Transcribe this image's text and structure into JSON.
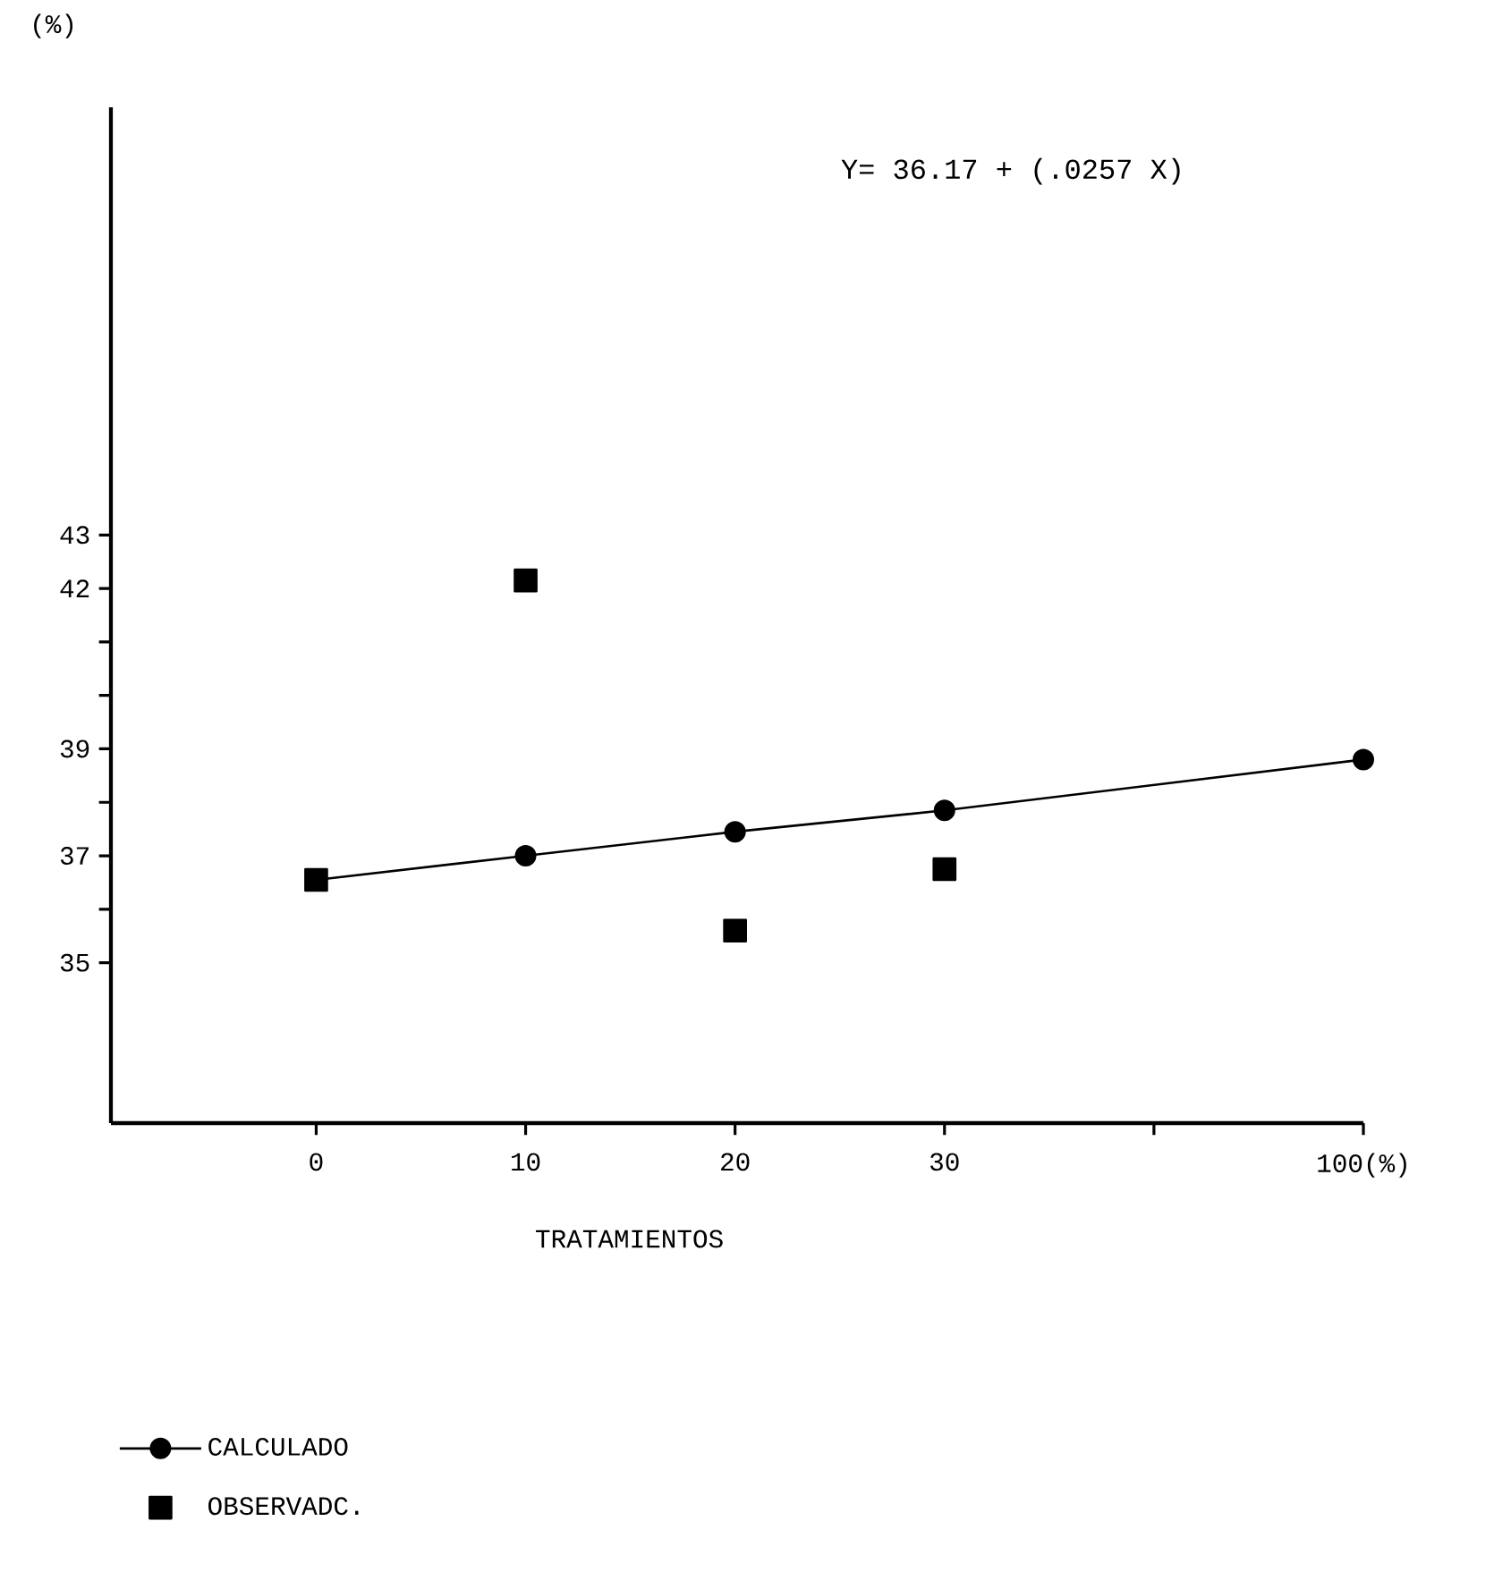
{
  "chart_data": {
    "type": "line",
    "ylabel": "(%)",
    "xlabel": "TRATAMIENTOS",
    "annotations": [
      "Y= 36.17 + (.0257 X)"
    ],
    "categories": [
      "0",
      "10",
      "20",
      "30",
      null,
      "100(%)"
    ],
    "series": [
      {
        "name": "CALCULADO",
        "marker": "circle",
        "line_style": "solid",
        "color": "#000000",
        "values": [
          36.55,
          37.0,
          37.45,
          37.85,
          null,
          38.8
        ]
      },
      {
        "name": "OBSERVADC.",
        "type": "scatter",
        "marker": "square",
        "color": "#000000",
        "values": [
          36.55,
          42.15,
          35.6,
          36.75,
          null,
          null
        ]
      }
    ],
    "ylim": [
      32,
      51
    ],
    "yticks": [
      35,
      {
        "value": 36,
        "label": null
      },
      37,
      {
        "value": 38,
        "label": null
      },
      39,
      {
        "value": 40,
        "label": null
      },
      {
        "value": 41,
        "label": null
      },
      42,
      43
    ],
    "legend": "bottom left"
  }
}
